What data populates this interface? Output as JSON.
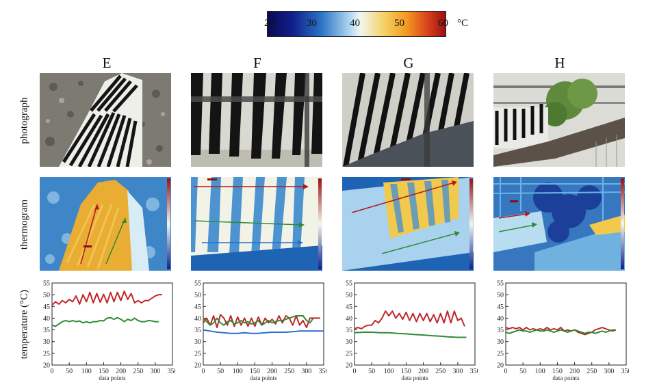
{
  "colorbar": {
    "ticks": [
      "20",
      "30",
      "40",
      "50",
      "60"
    ],
    "tick_values": [
      20,
      30,
      40,
      50,
      60
    ],
    "unit": "°C"
  },
  "columns": [
    "E",
    "F",
    "G",
    "H"
  ],
  "row_labels": {
    "photograph": "photograph",
    "thermogram": "thermogram",
    "temperature": "temperature (°C)"
  },
  "chart_data": [
    {
      "type": "line",
      "panel": "E",
      "xlabel": "data points",
      "ylabel": "temperature (°C)",
      "xlim": [
        0,
        350
      ],
      "ylim": [
        20,
        55
      ],
      "xticks": [
        0,
        50,
        100,
        150,
        200,
        250,
        300,
        350
      ],
      "yticks": [
        20,
        25,
        30,
        35,
        40,
        45,
        50,
        55
      ],
      "series": [
        {
          "color": "#c0262b",
          "x": [
            0,
            10,
            20,
            30,
            40,
            50,
            60,
            70,
            80,
            90,
            100,
            110,
            120,
            130,
            140,
            150,
            160,
            170,
            180,
            190,
            200,
            210,
            220,
            230,
            240,
            250,
            260,
            270,
            280,
            290,
            300,
            310,
            320
          ],
          "y": [
            45.5,
            47,
            46,
            47.5,
            46.5,
            48,
            47,
            49.5,
            46,
            50,
            47,
            51,
            46.5,
            50.5,
            46.8,
            50.2,
            46.5,
            51,
            47,
            51,
            47.5,
            51.5,
            48,
            50.5,
            46.5,
            47.5,
            46.5,
            47.5,
            47.5,
            48.5,
            49.5,
            50,
            50
          ]
        },
        {
          "color": "#2c8b34",
          "x": [
            0,
            10,
            20,
            30,
            40,
            50,
            60,
            70,
            80,
            90,
            100,
            110,
            120,
            130,
            140,
            150,
            160,
            170,
            180,
            190,
            200,
            210,
            220,
            230,
            240,
            250,
            260,
            270,
            280,
            290,
            300,
            310
          ],
          "y": [
            37,
            36.5,
            37.5,
            38.5,
            39,
            38.5,
            39,
            38.5,
            38.8,
            38,
            38.5,
            38,
            38.5,
            38.5,
            39,
            38.8,
            40,
            40.2,
            39.5,
            40.2,
            39.5,
            38.5,
            39.5,
            39,
            40,
            39,
            38.5,
            38.5,
            39,
            38.8,
            38.5,
            38.5
          ]
        }
      ]
    },
    {
      "type": "line",
      "panel": "F",
      "xlabel": "data points",
      "ylabel": "",
      "xlim": [
        0,
        350
      ],
      "ylim": [
        20,
        55
      ],
      "xticks": [
        0,
        50,
        100,
        150,
        200,
        250,
        300,
        350
      ],
      "yticks": [
        20,
        25,
        30,
        35,
        40,
        45,
        50,
        55
      ],
      "series": [
        {
          "color": "#c0262b",
          "x": [
            0,
            10,
            20,
            30,
            40,
            50,
            60,
            70,
            80,
            90,
            100,
            110,
            120,
            130,
            140,
            150,
            160,
            170,
            180,
            190,
            200,
            210,
            220,
            230,
            240,
            250,
            260,
            270,
            280,
            290,
            300,
            310,
            320,
            330,
            340
          ],
          "y": [
            38,
            40,
            37,
            41,
            36,
            41.5,
            40,
            37,
            41,
            36.5,
            40.5,
            37,
            40,
            36.5,
            40,
            36.5,
            40.5,
            37,
            40,
            38,
            39.5,
            37.5,
            41,
            38,
            41,
            40,
            37,
            41,
            37,
            39,
            36,
            40,
            40,
            40,
            40
          ]
        },
        {
          "color": "#2c8b34",
          "x": [
            0,
            10,
            20,
            30,
            40,
            50,
            60,
            70,
            80,
            90,
            100,
            110,
            120,
            130,
            140,
            150,
            160,
            170,
            180,
            190,
            200,
            210,
            220,
            230,
            240,
            250,
            260,
            270,
            280,
            290,
            300,
            310,
            320
          ],
          "y": [
            40,
            38.5,
            37,
            38,
            40,
            38,
            37,
            38.5,
            39,
            37.5,
            38,
            39,
            38,
            38.5,
            37.5,
            38,
            39,
            37,
            38,
            39,
            38,
            38.5,
            39,
            39,
            39.5,
            40,
            40.5,
            41,
            41,
            41,
            39,
            38,
            40
          ]
        },
        {
          "color": "#2a6fd1",
          "x": [
            0,
            20,
            40,
            60,
            80,
            100,
            120,
            140,
            160,
            180,
            200,
            220,
            240,
            260,
            280,
            300,
            320,
            340,
            350
          ],
          "y": [
            35,
            34.5,
            34,
            33.8,
            33.5,
            33.5,
            33.8,
            33.5,
            33.5,
            33.8,
            34,
            34,
            34,
            34.2,
            34.5,
            34.5,
            34.5,
            34.5,
            34.5
          ]
        }
      ]
    },
    {
      "type": "line",
      "panel": "G",
      "xlabel": "data points",
      "ylabel": "",
      "xlim": [
        0,
        350
      ],
      "ylim": [
        20,
        55
      ],
      "xticks": [
        0,
        50,
        100,
        150,
        200,
        250,
        300,
        350
      ],
      "yticks": [
        20,
        25,
        30,
        35,
        40,
        45,
        50,
        55
      ],
      "series": [
        {
          "color": "#c0262b",
          "x": [
            0,
            10,
            20,
            30,
            40,
            50,
            60,
            70,
            80,
            90,
            100,
            110,
            120,
            130,
            140,
            150,
            160,
            170,
            180,
            190,
            200,
            210,
            220,
            230,
            240,
            250,
            260,
            270,
            280,
            290,
            300,
            310,
            320
          ],
          "y": [
            35.5,
            36,
            35.5,
            36.5,
            37,
            37,
            39,
            38,
            40,
            43,
            41,
            43,
            40,
            42,
            39.5,
            42.5,
            39,
            42,
            38.5,
            42,
            39,
            42,
            38.5,
            41.5,
            38,
            42,
            38,
            43,
            38,
            43,
            39,
            40,
            36.5
          ]
        },
        {
          "color": "#2c8b34",
          "x": [
            0,
            25,
            50,
            75,
            100,
            125,
            150,
            175,
            200,
            225,
            250,
            275,
            300,
            325
          ],
          "y": [
            33.8,
            34,
            34,
            33.8,
            33.8,
            33.5,
            33.3,
            33,
            32.8,
            32.5,
            32.3,
            32,
            31.8,
            31.8
          ]
        }
      ]
    },
    {
      "type": "line",
      "panel": "H",
      "xlabel": "data points",
      "ylabel": "",
      "xlim": [
        0,
        350
      ],
      "ylim": [
        20,
        55
      ],
      "xticks": [
        0,
        50,
        100,
        150,
        200,
        250,
        300,
        350
      ],
      "yticks": [
        20,
        25,
        30,
        35,
        40,
        45,
        50,
        55
      ],
      "series": [
        {
          "color": "#c0262b",
          "x": [
            0,
            10,
            20,
            30,
            40,
            50,
            60,
            70,
            80,
            90,
            100,
            110,
            120,
            130,
            140,
            150,
            160,
            170,
            180,
            190,
            200,
            210,
            220,
            230,
            240,
            250,
            260,
            270,
            280,
            290,
            300,
            310,
            320
          ],
          "y": [
            36,
            35.5,
            36,
            35.5,
            36,
            35,
            36,
            35,
            35.5,
            35,
            35.5,
            35,
            36,
            35,
            35.5,
            35,
            36,
            34.5,
            35,
            34.5,
            35,
            34,
            33.5,
            33,
            33.5,
            34,
            35,
            35.5,
            36,
            35.5,
            35,
            34.5,
            35
          ]
        },
        {
          "color": "#2c8b34",
          "x": [
            0,
            10,
            20,
            30,
            40,
            50,
            60,
            70,
            80,
            90,
            100,
            110,
            120,
            130,
            140,
            150,
            160,
            170,
            180,
            190,
            200,
            210,
            220,
            230,
            240,
            250,
            260,
            270,
            280,
            290,
            300,
            310,
            320
          ],
          "y": [
            34,
            33.5,
            34,
            34.5,
            35,
            34.5,
            34.5,
            34,
            34.5,
            35,
            34.5,
            34.5,
            35,
            34.5,
            34,
            34.5,
            35,
            34.5,
            34,
            34.5,
            35,
            34.5,
            34,
            33.5,
            34,
            34,
            33.5,
            34,
            34.5,
            34,
            34.5,
            35,
            35
          ]
        }
      ]
    }
  ]
}
